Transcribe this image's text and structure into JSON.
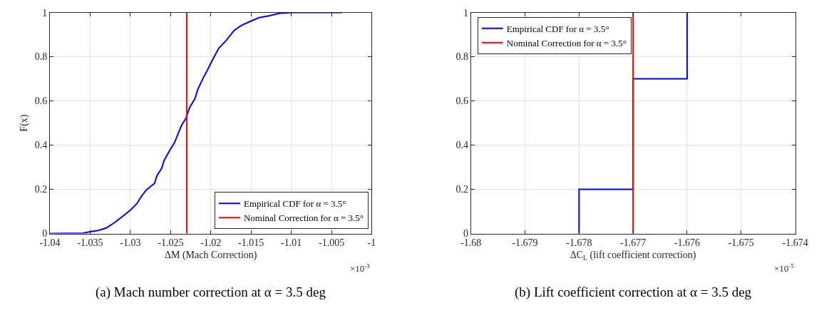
{
  "chart_data": [
    {
      "type": "line",
      "xlabel": "ΔM (Mach Correction)",
      "ylabel": "F(x)",
      "xlim": [
        -1.04,
        -1
      ],
      "ylim": [
        0,
        1
      ],
      "xticks": [
        -1.04,
        -1.035,
        -1.03,
        -1.025,
        -1.02,
        -1.015,
        -1.01,
        -1.005,
        -1
      ],
      "yticks": [
        0,
        0.2,
        0.4,
        0.6,
        0.8,
        1
      ],
      "grid": true,
      "legend": "bottom right",
      "series": [
        {
          "name": "Empirical CDF for α = 3.5°",
          "color": "#0000ff",
          "x": [
            -1.04,
            -1.0359,
            -1.035,
            -1.034,
            -1.033,
            -1.0324,
            -1.0318,
            -1.031,
            -1.03,
            -1.0292,
            -1.0286,
            -1.028,
            -1.027,
            -1.0267,
            -1.0261,
            -1.0258,
            -1.0251,
            -1.0245,
            -1.024,
            -1.0236,
            -1.0231,
            -1.0226,
            -1.022,
            -1.0216,
            -1.021,
            -1.0205,
            -1.0197,
            -1.019,
            -1.0181,
            -1.0171,
            -1.0162,
            -1.0151,
            -1.014,
            -1.0127,
            -1.0114,
            -1.0098,
            -1.0037
          ],
          "values": [
            0,
            0.002,
            0.008,
            0.014,
            0.025,
            0.039,
            0.054,
            0.077,
            0.106,
            0.135,
            0.17,
            0.198,
            0.227,
            0.262,
            0.296,
            0.331,
            0.377,
            0.412,
            0.458,
            0.492,
            0.521,
            0.573,
            0.608,
            0.654,
            0.7,
            0.734,
            0.792,
            0.839,
            0.873,
            0.919,
            0.942,
            0.96,
            0.977,
            0.986,
            0.997,
            1,
            1
          ]
        },
        {
          "name": "Nominal Correction for α = 3.5°",
          "color": "#ff0000",
          "type": "line",
          "x": [
            -1.023,
            -1.023
          ],
          "values": [
            0,
            1
          ]
        }
      ],
      "annotations": [
        "×10$^{-3}$",
        "(a) Mach number correction at α = 3.5 deg"
      ]
    },
    {
      "type": "step",
      "xlabel": "ΔC$_{L}$ (lift coefficient correction)",
      "xlim": [
        -1.68,
        -1.674
      ],
      "ylim": [
        0,
        1
      ],
      "xticks": [
        -1.68,
        -1.679,
        -1.678,
        -1.677,
        -1.676,
        -1.675,
        -1.674
      ],
      "yticks": [
        0,
        0.2,
        0.4,
        0.6,
        0.8,
        1
      ],
      "grid": true,
      "legend": "top left",
      "series": [
        {
          "name": "Empirical CDF for α = 3.5°",
          "color": "#0000ff",
          "x": [
            -1.678,
            -1.678,
            -1.677,
            -1.676
          ],
          "values": [
            0,
            0.2,
            0.7,
            1
          ]
        },
        {
          "name": "Nominal Correction for α = 3.5°",
          "color": "#ff0000",
          "type": "line",
          "x": [
            -1.677,
            -1.677
          ],
          "values": [
            0,
            1
          ]
        }
      ],
      "annotations": [
        "×10$^{-5}$",
        "(b) Lift coefficient correction at α = 3.5 deg"
      ]
    }
  ]
}
